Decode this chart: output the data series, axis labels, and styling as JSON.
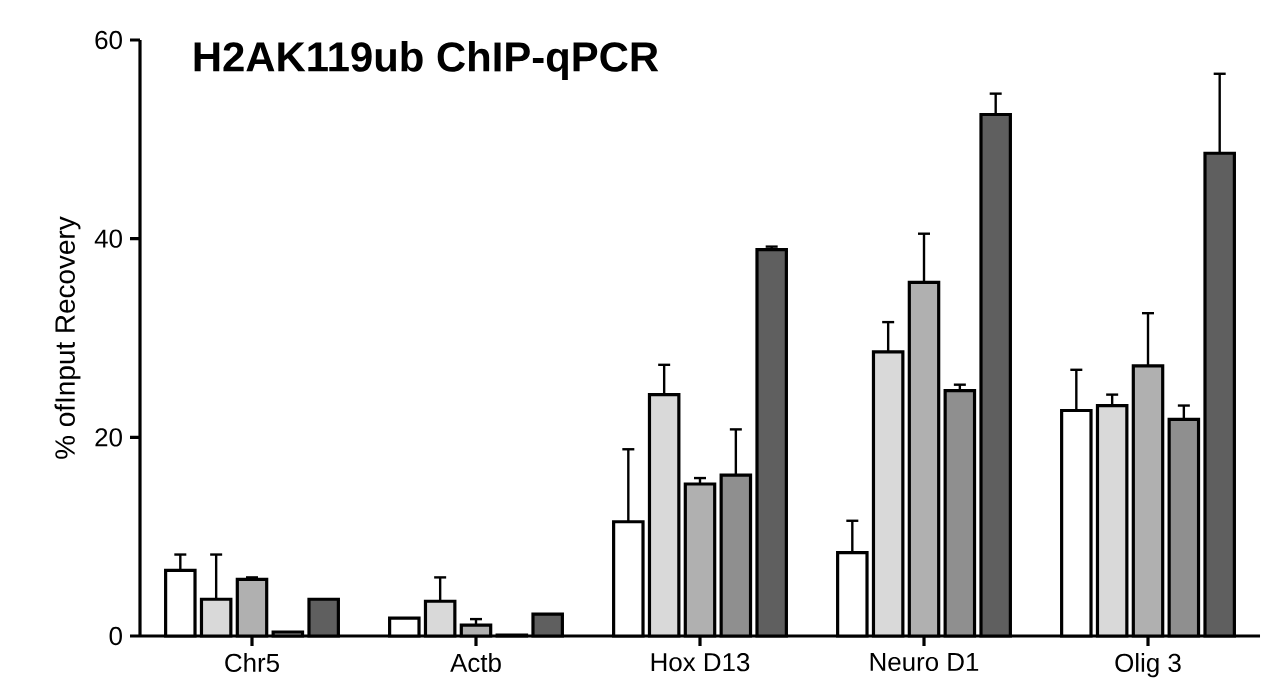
{
  "chart_data": {
    "type": "bar",
    "title": "H2AK119ub ChIP-qPCR",
    "ylabel": "% ofInput Recovery",
    "categories": [
      "Chr5",
      "Actb",
      "Hox D13",
      "Neuro D1",
      "Olig 3"
    ],
    "ylim": [
      0,
      60
    ],
    "yticks": [
      0,
      20,
      40,
      60
    ],
    "series": [
      {
        "color": "#ffffff",
        "values": [
          6.6,
          1.8,
          11.5,
          8.4,
          22.7
        ],
        "errors": [
          [
            6.6,
            8.2
          ],
          null,
          [
            11.5,
            18.8
          ],
          [
            8.4,
            11.6
          ],
          [
            22.7,
            26.8
          ]
        ]
      },
      {
        "color": "#d9d9d9",
        "values": [
          3.7,
          3.5,
          24.3,
          28.6,
          23.2
        ],
        "errors": [
          [
            3.7,
            8.2
          ],
          [
            3.5,
            5.9
          ],
          [
            24.3,
            27.3
          ],
          [
            28.6,
            31.6
          ],
          [
            23.2,
            24.3
          ]
        ]
      },
      {
        "color": "#b0b0b0",
        "values": [
          5.7,
          1.1,
          15.3,
          35.6,
          27.2
        ],
        "errors": [
          [
            5.7,
            5.9
          ],
          [
            1.1,
            1.7
          ],
          [
            15.3,
            15.9
          ],
          [
            35.6,
            40.5
          ],
          [
            27.2,
            32.5
          ]
        ]
      },
      {
        "color": "#8f8f8f",
        "values": [
          0.4,
          0.1,
          16.2,
          24.7,
          21.8
        ],
        "errors": [
          null,
          null,
          [
            16.2,
            20.8
          ],
          [
            24.7,
            25.3
          ],
          [
            21.8,
            23.2
          ]
        ]
      },
      {
        "color": "#5f5f5f",
        "values": [
          3.7,
          2.2,
          38.9,
          52.5,
          48.6
        ],
        "errors": [
          null,
          null,
          [
            38.9,
            39.2
          ],
          [
            52.5,
            54.6
          ],
          [
            48.6,
            56.6
          ]
        ]
      }
    ]
  }
}
